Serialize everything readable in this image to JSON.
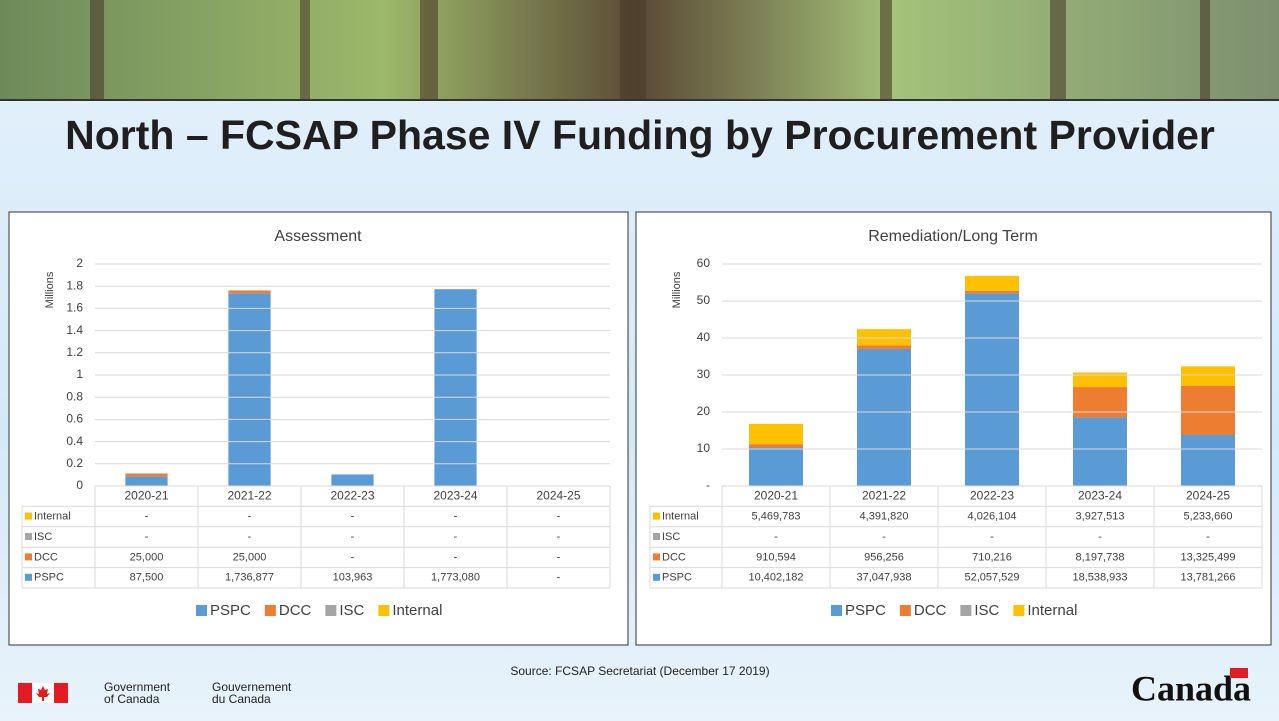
{
  "title": "North – FCSAP Phase IV Funding by Procurement Provider",
  "source": "Source: FCSAP Secretariat (December 17 2019)",
  "footer": {
    "government_en_1": "Government",
    "government_en_2": "of Canada",
    "government_fr_1": "Gouvernement",
    "government_fr_2": "du Canada",
    "wordmark": "Canada"
  },
  "chart_data": [
    {
      "type": "bar",
      "stacked": true,
      "title": "Assessment",
      "y_label": "Millions",
      "categories": [
        "2020-21",
        "2021-22",
        "2022-23",
        "2023-24",
        "2024-25"
      ],
      "ylim": [
        0,
        2
      ],
      "yticks": [
        0,
        0.2,
        0.4,
        0.6,
        0.8,
        1,
        1.2,
        1.4,
        1.6,
        1.8,
        2
      ],
      "grid": true,
      "series": [
        {
          "name": "PSPC",
          "color": "#5b9bd5",
          "values": [
            0.0875,
            1.736877,
            0.103963,
            1.77308,
            0
          ],
          "value_labels": [
            "87,500",
            "1,736,877",
            "103,963",
            "1,773,080",
            "-"
          ]
        },
        {
          "name": "DCC",
          "color": "#ed7d31",
          "values": [
            0.025,
            0.025,
            0,
            0,
            0
          ],
          "value_labels": [
            "25,000",
            "25,000",
            "-",
            "-",
            "-"
          ]
        },
        {
          "name": "ISC",
          "color": "#a5a5a5",
          "values": [
            0,
            0,
            0,
            0,
            0
          ],
          "value_labels": [
            "-",
            "-",
            "-",
            "-",
            "-"
          ]
        },
        {
          "name": "Internal",
          "color": "#ffc000",
          "values": [
            0,
            0,
            0,
            0,
            0
          ],
          "value_labels": [
            "-",
            "-",
            "-",
            "-",
            "-"
          ]
        }
      ]
    },
    {
      "type": "bar",
      "stacked": true,
      "title": "Remediation/Long Term",
      "y_label": "Millions",
      "categories": [
        "2020-21",
        "2021-22",
        "2022-23",
        "2023-24",
        "2024-25"
      ],
      "ylim": [
        0,
        60
      ],
      "yticks": [
        {
          "value": 0,
          "label": "-"
        },
        10,
        20,
        30,
        40,
        50,
        60
      ],
      "grid": true,
      "series": [
        {
          "name": "PSPC",
          "color": "#5b9bd5",
          "values": [
            10.402182,
            37.047938,
            52.057529,
            18.538933,
            13.781266
          ],
          "value_labels": [
            "10,402,182",
            "37,047,938",
            "52,057,529",
            "18,538,933",
            "13,781,266"
          ]
        },
        {
          "name": "DCC",
          "color": "#ed7d31",
          "values": [
            0.910594,
            0.956256,
            0.710216,
            8.197738,
            13.325499
          ],
          "value_labels": [
            "910,594",
            "956,256",
            "710,216",
            "8,197,738",
            "13,325,499"
          ]
        },
        {
          "name": "ISC",
          "color": "#a5a5a5",
          "values": [
            0,
            0,
            0,
            0,
            0
          ],
          "value_labels": [
            "-",
            "-",
            "-",
            "-",
            "-"
          ]
        },
        {
          "name": "Internal",
          "color": "#ffc000",
          "values": [
            5.469783,
            4.39182,
            4.026104,
            3.927513,
            5.23366
          ],
          "value_labels": [
            "5,469,783",
            "4,391,820",
            "4,026,104",
            "3,927,513",
            "5,233,660"
          ]
        }
      ]
    }
  ]
}
